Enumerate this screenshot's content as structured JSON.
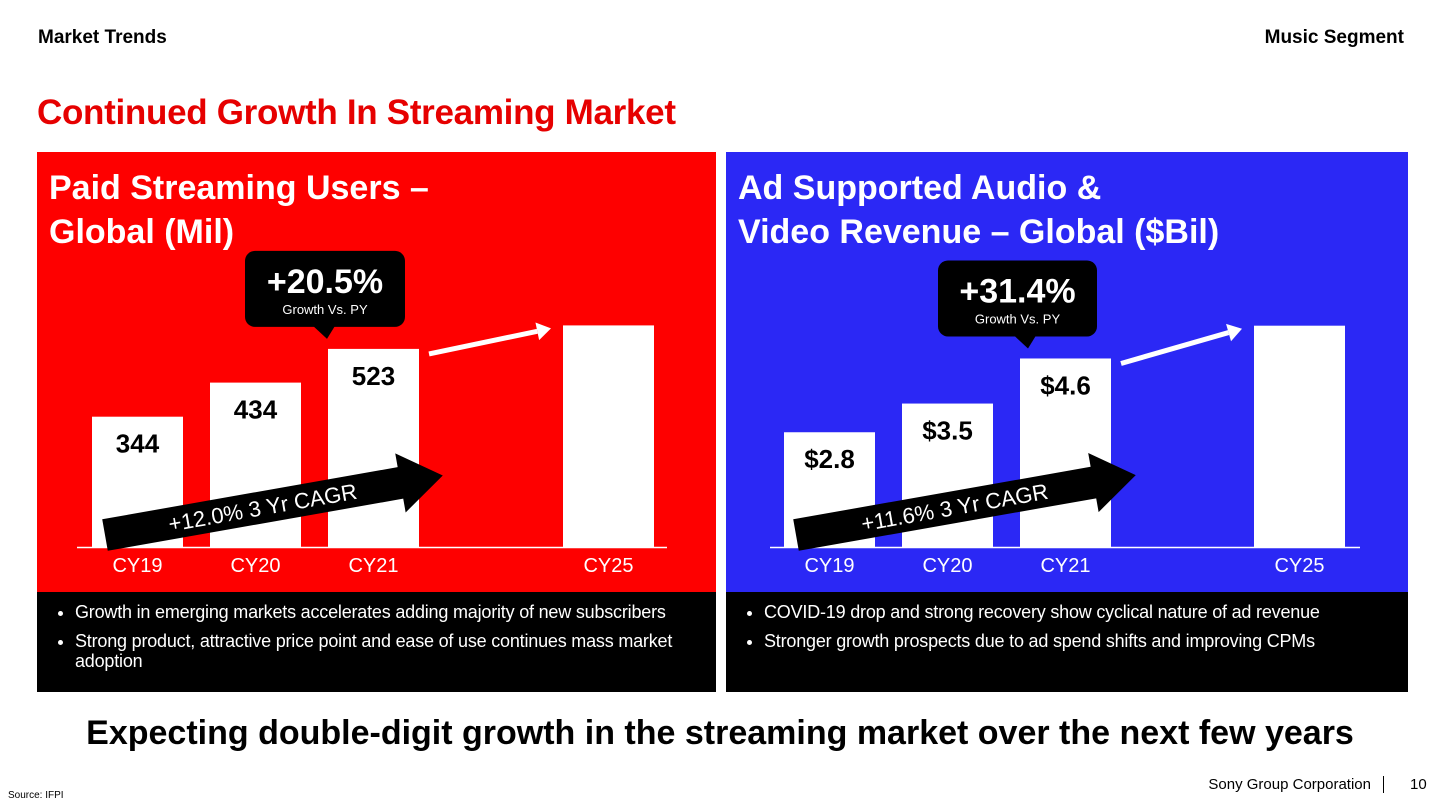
{
  "header": {
    "left": "Market Trends",
    "right": "Music Segment"
  },
  "title": "Continued Growth In Streaming Market",
  "panels": [
    {
      "title": "Paid Streaming Users –\nGlobal (Mil)",
      "color": "#fe0000",
      "bullets": [
        "Growth in emerging markets accelerates adding majority of new subscribers",
        "Strong product, attractive price point and ease of use continues mass market adoption"
      ]
    },
    {
      "title": "Ad Supported Audio &\nVideo Revenue – Global ($Bil)",
      "color": "#2b28f5",
      "bullets": [
        "COVID-19 drop and strong recovery show cyclical nature of ad revenue",
        "Stronger growth prospects due to ad spend shifts and improving CPMs"
      ]
    }
  ],
  "chart_data": [
    {
      "type": "bar",
      "title": "Paid Streaming Users – Global (Mil)",
      "categories": [
        "CY19",
        "CY20",
        "CY21",
        "CY25"
      ],
      "values": [
        344,
        434,
        523,
        585
      ],
      "data_labels": [
        "344",
        "434",
        "523",
        ""
      ],
      "ylim": [
        0,
        660
      ],
      "callout": {
        "value": "+20.5%",
        "caption": "Growth Vs. PY"
      },
      "cagr_label": "+12.0% 3 Yr CAGR"
    },
    {
      "type": "bar",
      "title": "Ad Supported Audio & Video Revenue – Global ($Bil)",
      "categories": [
        "CY19",
        "CY20",
        "CY21",
        "CY25"
      ],
      "values": [
        2.8,
        3.5,
        4.6,
        5.4
      ],
      "data_labels": [
        "$2.8",
        "$3.5",
        "$4.6",
        ""
      ],
      "ylim": [
        0,
        6.1
      ],
      "callout": {
        "value": "+31.4%",
        "caption": "Growth Vs. PY"
      },
      "cagr_label": "+11.6% 3 Yr CAGR"
    }
  ],
  "footer": {
    "message": "Expecting double-digit growth in the streaming market over the next few years",
    "source": "Source: IFPI",
    "company": "Sony Group Corporation",
    "page": "10"
  }
}
